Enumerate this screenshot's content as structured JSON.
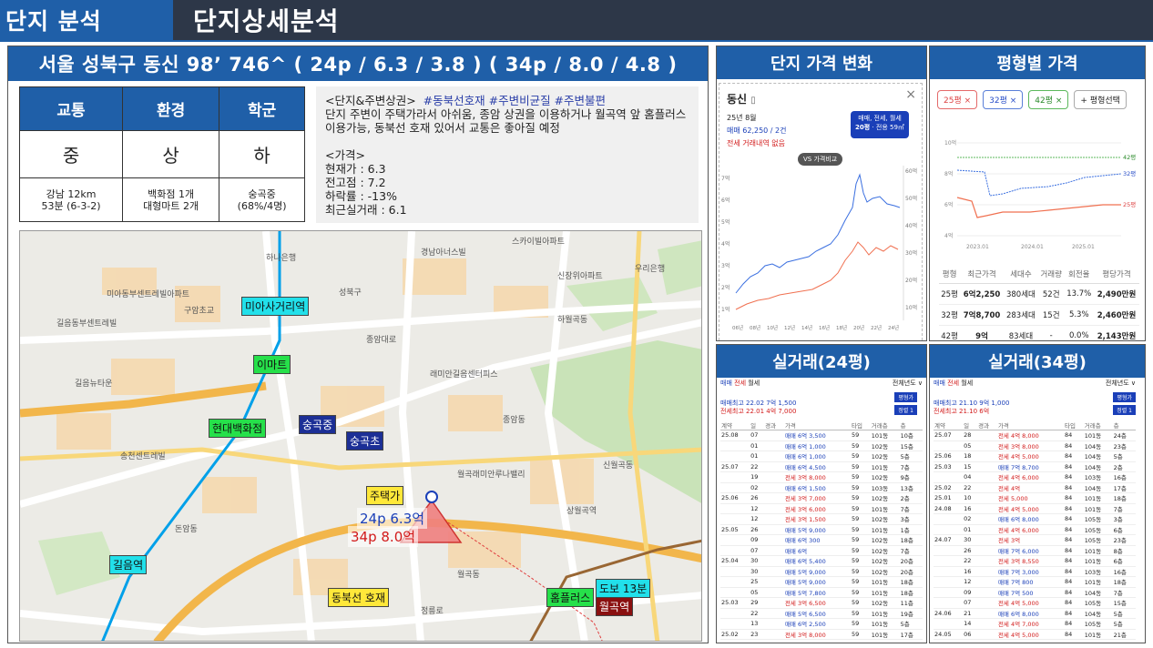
{
  "header": {
    "section": "단지 분석",
    "title": "단지상세분석"
  },
  "complex": {
    "title": "서울 성북구 동신 98’ 746^ ( 24p / 6.3 / 3.8 ) ( 34p / 8.0 / 4.8 )",
    "grades": [
      {
        "label": "교통",
        "grade": "중",
        "detail": [
          "강남 12km",
          "53분 (6-3-2)"
        ]
      },
      {
        "label": "환경",
        "grade": "상",
        "detail": [
          "백화점 1개",
          "대형마트 2개"
        ]
      },
      {
        "label": "학군",
        "grade": "하",
        "detail": [
          "숭곡중",
          "(68%/4명)"
        ]
      }
    ],
    "notes": {
      "heading": "<단지&주변상권>",
      "tags": "#동북선호재  #주변비균질  #주변불편",
      "desc": "단지 주변이 주택가라서 아쉬움, 종암 상권을 이용하거나 월곡역 앞 홈플러스 이용가능, 동북선 호재 있어서 교통은 좋아질 예정",
      "price_heading": "<가격>",
      "price_lines": [
        "현재가 : 6.3",
        "전고점 : 7.2",
        "하락률 : -13%",
        "최근실거래 : 6.1"
      ]
    }
  },
  "map": {
    "labels": {
      "miasa": "미아사거리역",
      "emart": "이마트",
      "hyundai": "현대백화점",
      "sunggok_mid": "숭곡중",
      "sunggok_ele": "숭곡초",
      "house": "주택가",
      "p24": "24p 6.3억",
      "p34": "34p 8.0억",
      "gireum": "길음역",
      "dongbuk": "동북선 호재",
      "homeplus": "홈플러스",
      "walk": "도보 13분",
      "wolgok": "월곡역"
    },
    "places": [
      "하나은행",
      "미아동부센트레빌아파트",
      "경남아너스빌",
      "스카이빌아파트",
      "우리은행",
      "신장위아파트",
      "길음동부센트레빌",
      "구암초교",
      "래미안길음센터피스",
      "하월곡동",
      "종암대로",
      "송천센트레빌",
      "월곡래미안루나밸리",
      "상월곡역",
      "정릉로",
      "성북구",
      "길음뉴타운",
      "돈암동",
      "종암동",
      "월곡동",
      "신월곡동"
    ]
  },
  "price_change": {
    "title": "단지 가격 변화",
    "name": "동신",
    "date": "25년 8월",
    "sale": "매매 62,250 / 2건",
    "rent": "전세 거래내역 없음",
    "filter": "매매, 전세, 월세",
    "size": "20평",
    "size_sub": "· 전용 59㎡",
    "compare": "VS 가격비교",
    "yaxis_right": [
      "60억",
      "50억",
      "40억",
      "30억",
      "20억",
      "10억"
    ],
    "yaxis_left": [
      "7억",
      "6억",
      "5억",
      "4억",
      "3억",
      "2억",
      "1억"
    ],
    "xaxis": [
      "06년",
      "08년",
      "10년",
      "12년",
      "14년",
      "16년",
      "18년",
      "20년",
      "22년",
      "24년"
    ]
  },
  "pyeong": {
    "title": "평형별 가격",
    "tabs": [
      "25평 ×",
      "32평 ×",
      "42평 ×",
      "+ 평형선택"
    ],
    "yticks": [
      "10억",
      "8억",
      "6억",
      "4억"
    ],
    "xticks": [
      "2023.01",
      "2024.01",
      "2025.01"
    ],
    "line_labels": [
      "42평",
      "32평",
      "25평"
    ],
    "headers": [
      "평형",
      "최근가격",
      "세대수",
      "거래량",
      "회전율",
      "평당가격"
    ],
    "rows": [
      [
        "25평",
        "6억2,250",
        "380세대",
        "52건",
        "13.7%",
        "2,490만원"
      ],
      [
        "32평",
        "7억8,700",
        "283세대",
        "15건",
        "5.3%",
        "2,460만원"
      ],
      [
        "42평",
        "9억",
        "83세대",
        "-",
        "0.0%",
        "2,143만원"
      ]
    ]
  },
  "tx24": {
    "title": "실거래(24평)",
    "tabs": [
      "매매",
      "전세",
      "월세"
    ],
    "period": "전체년도 ∨",
    "summary": [
      "매매최고 22.02  7억 1,500",
      "전세최고 22.01  4억 7,000"
    ],
    "btn1": "평형가",
    "btn2": "정렬 1",
    "cols": [
      "계약",
      "일",
      "경과",
      "가격",
      "타입",
      "거래층",
      "층"
    ],
    "rows": [
      [
        "25.08",
        "07",
        "",
        "매매 6억 3,500",
        "59",
        "101동",
        "10층"
      ],
      [
        "",
        "01",
        "",
        "매매 6억 1,000",
        "59",
        "102동",
        "15층"
      ],
      [
        "",
        "01",
        "",
        "매매 6억 1,000",
        "59",
        "102동",
        "5층"
      ],
      [
        "25.07",
        "22",
        "",
        "매매 6억 4,500",
        "59",
        "101동",
        "7층"
      ],
      [
        "",
        "19",
        "",
        "전세 3억 8,000",
        "59",
        "102동",
        "9층"
      ],
      [
        "",
        "02",
        "",
        "매매 6억 1,500",
        "59",
        "103동",
        "13층"
      ],
      [
        "25.06",
        "26",
        "",
        "전세 3억 7,000",
        "59",
        "102동",
        "2층"
      ],
      [
        "",
        "12",
        "",
        "전세 3억 6,000",
        "59",
        "101동",
        "7층"
      ],
      [
        "",
        "12",
        "",
        "전세 3억 1,500",
        "59",
        "102동",
        "3층"
      ],
      [
        "25.05",
        "26",
        "",
        "매매 5억 9,000",
        "59",
        "101동",
        "1층"
      ],
      [
        "",
        "09",
        "",
        "매매 6억 300",
        "59",
        "102동",
        "18층"
      ],
      [
        "",
        "07",
        "",
        "매매 6억",
        "59",
        "102동",
        "7층"
      ],
      [
        "25.04",
        "30",
        "",
        "매매 6억 5,400",
        "59",
        "102동",
        "20층"
      ],
      [
        "",
        "30",
        "",
        "매매 5억 9,000",
        "59",
        "102동",
        "20층"
      ],
      [
        "",
        "25",
        "",
        "매매 5억 9,000",
        "59",
        "101동",
        "18층"
      ],
      [
        "",
        "05",
        "",
        "매매 5억 7,800",
        "59",
        "101동",
        "18층"
      ],
      [
        "25.03",
        "29",
        "",
        "전세 3억 6,500",
        "59",
        "102동",
        "11층"
      ],
      [
        "",
        "22",
        "",
        "매매 5억 6,500",
        "59",
        "101동",
        "19층"
      ],
      [
        "",
        "13",
        "",
        "매매 6억 2,500",
        "59",
        "101동",
        "5층"
      ],
      [
        "25.02",
        "23",
        "",
        "전세 3억 8,000",
        "59",
        "101동",
        "17층"
      ]
    ]
  },
  "tx34": {
    "title": "실거래(34평)",
    "tabs": [
      "매매",
      "전세",
      "월세"
    ],
    "period": "전체년도 ∨",
    "summary": [
      "매매최고 21.10  9억 1,000",
      "전세최고 21.10  6억"
    ],
    "btn1": "평형가",
    "btn2": "정렬 1",
    "cols": [
      "계약",
      "일",
      "경과",
      "가격",
      "타입",
      "거래층",
      "층"
    ],
    "rows": [
      [
        "25.07",
        "28",
        "",
        "전세 4억 8,000",
        "84",
        "101동",
        "24층"
      ],
      [
        "",
        "05",
        "",
        "전세 3억 8,000",
        "84",
        "104동",
        "23층"
      ],
      [
        "25.06",
        "18",
        "",
        "전세 4억 5,000",
        "84",
        "104동",
        "5층"
      ],
      [
        "25.03",
        "15",
        "",
        "매매 7억 8,700",
        "84",
        "104동",
        "2층"
      ],
      [
        "",
        "04",
        "",
        "전세 4억 6,000",
        "84",
        "103동",
        "16층"
      ],
      [
        "25.02",
        "22",
        "",
        "전세 4억",
        "84",
        "104동",
        "17층"
      ],
      [
        "25.01",
        "10",
        "",
        "전세 5,000",
        "84",
        "101동",
        "18층"
      ],
      [
        "24.08",
        "16",
        "",
        "전세 4억 5,000",
        "84",
        "101동",
        "7층"
      ],
      [
        "",
        "02",
        "",
        "매매 6억 8,000",
        "84",
        "105동",
        "3층"
      ],
      [
        "",
        "01",
        "",
        "전세 4억 6,000",
        "84",
        "105동",
        "6층"
      ],
      [
        "24.07",
        "30",
        "",
        "전세 3억",
        "84",
        "105동",
        "23층"
      ],
      [
        "",
        "26",
        "",
        "매매 7억 6,000",
        "84",
        "101동",
        "8층"
      ],
      [
        "",
        "22",
        "",
        "전세 3억 8,550",
        "84",
        "101동",
        "6층"
      ],
      [
        "",
        "16",
        "",
        "매매 7억 3,000",
        "84",
        "103동",
        "16층"
      ],
      [
        "",
        "12",
        "",
        "매매 7억 800",
        "84",
        "101동",
        "18층"
      ],
      [
        "",
        "09",
        "",
        "매매 7억 500",
        "84",
        "104동",
        "7층"
      ],
      [
        "",
        "07",
        "",
        "전세 4억 5,000",
        "84",
        "105동",
        "15층"
      ],
      [
        "24.06",
        "21",
        "",
        "매매 6억 8,000",
        "84",
        "104동",
        "5층"
      ],
      [
        "",
        "14",
        "",
        "전세 4억 7,000",
        "84",
        "105동",
        "5층"
      ],
      [
        "24.05",
        "06",
        "",
        "전세 4억 5,000",
        "84",
        "101동",
        "21층"
      ]
    ]
  }
}
